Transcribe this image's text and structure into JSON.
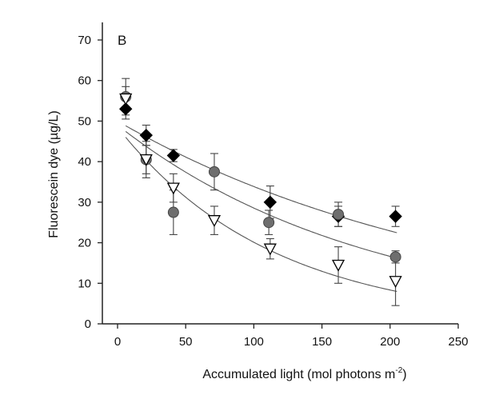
{
  "chart_data": {
    "type": "scatter",
    "panel_label": "B",
    "xlabel": "Accumulated light (mol photons m",
    "xlabel_superscript": "-2",
    "xlabel_close": ")",
    "ylabel": "Fluorescein dye (µg/L)",
    "xlim": [
      -10,
      250
    ],
    "ylim": [
      0,
      75
    ],
    "x_ticks": [
      0,
      50,
      100,
      150,
      200,
      250
    ],
    "y_ticks": [
      0,
      10,
      20,
      30,
      40,
      50,
      60,
      70
    ],
    "grid": false,
    "series": [
      {
        "marker": "diamond",
        "color": "#000000",
        "x": [
          6,
          21,
          41,
          112,
          162,
          204
        ],
        "y": [
          53,
          46.5,
          41.5,
          30,
          26.5,
          26.5
        ],
        "err": [
          2.5,
          2.5,
          1.5,
          4,
          2.5,
          2.5
        ]
      },
      {
        "marker": "circle",
        "color": "#6e6e6e",
        "x": [
          6,
          21,
          41,
          71,
          111,
          162,
          204
        ],
        "y": [
          56,
          40.5,
          27.5,
          37.5,
          25,
          27,
          16.5
        ],
        "err": [
          4.5,
          3.5,
          5.5,
          4.5,
          3,
          3,
          1.5
        ]
      },
      {
        "marker": "triangle-down-open",
        "color": "#000000",
        "x": [
          6,
          21,
          41,
          71,
          112,
          162,
          204
        ],
        "y": [
          55.5,
          40.5,
          33.5,
          25.5,
          18.5,
          14.5,
          10.5
        ],
        "err": [
          3,
          4.5,
          3.5,
          3.5,
          2.5,
          4.5,
          6
        ]
      }
    ],
    "fit_curves": [
      {
        "a": 50,
        "k": 0.0039
      },
      {
        "a": 49,
        "k": 0.0054
      },
      {
        "a": 48.5,
        "k": 0.0088
      }
    ]
  }
}
